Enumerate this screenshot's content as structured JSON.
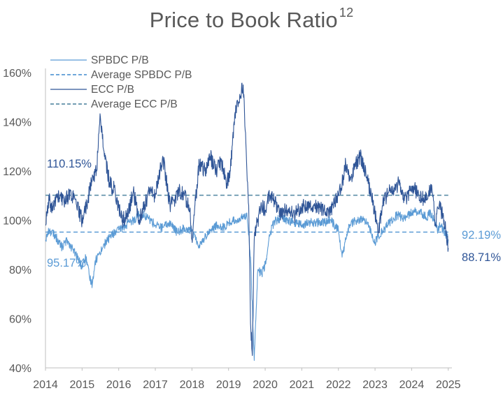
{
  "chart_data": {
    "type": "line",
    "title": "Price to Book Ratio",
    "title_superscript": "12",
    "xlabel": "",
    "ylabel": "",
    "xlim": [
      2014,
      2025.1
    ],
    "ylim": [
      40,
      160
    ],
    "x_ticks": [
      "2014",
      "2015",
      "2016",
      "2017",
      "2018",
      "2019",
      "2020",
      "2021",
      "2022",
      "2023",
      "2024",
      "2025"
    ],
    "y_ticks": [
      "40%",
      "60%",
      "80%",
      "100%",
      "120%",
      "140%",
      "160%"
    ],
    "grid": false,
    "legend_position": "top-left",
    "legend": [
      {
        "label": "SPBDC P/B",
        "style": "solid",
        "color": "#5B9BD5"
      },
      {
        "label": "Average SPBDC P/B",
        "style": "dashed",
        "color": "#5B9BD5"
      },
      {
        "label": "ECC P/B",
        "style": "solid",
        "color": "#2F5597"
      },
      {
        "label": "Average ECC P/B",
        "style": "dashed",
        "color": "#5E8FA8"
      }
    ],
    "series": [
      {
        "name": "SPBDC P/B",
        "color": "#5B9BD5",
        "x": [
          2014.0,
          2014.1,
          2014.25,
          2014.45,
          2014.6,
          2014.75,
          2014.9,
          2015.0,
          2015.1,
          2015.2,
          2015.28,
          2015.35,
          2015.45,
          2015.6,
          2015.8,
          2016.0,
          2016.2,
          2016.4,
          2016.6,
          2016.8,
          2017.0,
          2017.2,
          2017.4,
          2017.6,
          2017.8,
          2018.0,
          2018.1,
          2018.2,
          2018.35,
          2018.5,
          2018.7,
          2018.9,
          2019.0,
          2019.2,
          2019.4,
          2019.5,
          2019.6,
          2019.7,
          2019.8,
          2019.9,
          2020.0,
          2020.1,
          2020.2,
          2020.3,
          2020.45,
          2020.6,
          2020.8,
          2021.0,
          2021.2,
          2021.4,
          2021.6,
          2021.8,
          2022.0,
          2022.1,
          2022.2,
          2022.3,
          2022.5,
          2022.7,
          2022.85,
          2023.0,
          2023.2,
          2023.4,
          2023.6,
          2023.8,
          2024.0,
          2024.2,
          2024.4,
          2024.5,
          2024.6,
          2024.7,
          2024.8,
          2024.9,
          2025.0
        ],
        "values": [
          92,
          96,
          94,
          89,
          92,
          88,
          84,
          81,
          85,
          77,
          74,
          83,
          86,
          90,
          94,
          96,
          98,
          100,
          103,
          101,
          98,
          97,
          99,
          95,
          97,
          96,
          92,
          90,
          93,
          96,
          98,
          97,
          99,
          100,
          101,
          103,
          85,
          43,
          80,
          78,
          82,
          92,
          98,
          100,
          101,
          100,
          99,
          98,
          99,
          99,
          99,
          100,
          96,
          85,
          92,
          98,
          100,
          100,
          97,
          91,
          96,
          99,
          102,
          101,
          103,
          104,
          101,
          103,
          100,
          96,
          98,
          95,
          92.19
        ]
      },
      {
        "name": "Average SPBDC P/B",
        "color": "#5B9BD5",
        "x": [
          2014.0,
          2025.0
        ],
        "values": [
          95.17,
          95.17
        ]
      },
      {
        "name": "ECC P/B",
        "color": "#2F5597",
        "x": [
          2014.0,
          2014.1,
          2014.2,
          2014.3,
          2014.5,
          2014.7,
          2014.85,
          2015.0,
          2015.15,
          2015.3,
          2015.4,
          2015.45,
          2015.5,
          2015.6,
          2015.75,
          2015.9,
          2016.0,
          2016.1,
          2016.25,
          2016.4,
          2016.55,
          2016.7,
          2016.85,
          2017.0,
          2017.1,
          2017.2,
          2017.3,
          2017.4,
          2017.5,
          2017.65,
          2017.8,
          2017.95,
          2018.0,
          2018.1,
          2018.2,
          2018.35,
          2018.5,
          2018.65,
          2018.8,
          2018.95,
          2019.05,
          2019.15,
          2019.25,
          2019.35,
          2019.4,
          2019.5,
          2019.55,
          2019.6,
          2019.65,
          2019.7,
          2019.75,
          2019.8,
          2019.9,
          2020.0,
          2020.1,
          2020.25,
          2020.4,
          2020.6,
          2020.8,
          2021.0,
          2021.2,
          2021.4,
          2021.6,
          2021.8,
          2022.0,
          2022.1,
          2022.2,
          2022.3,
          2022.45,
          2022.6,
          2022.75,
          2022.9,
          2023.0,
          2023.1,
          2023.2,
          2023.35,
          2023.5,
          2023.65,
          2023.8,
          2023.95,
          2024.05,
          2024.2,
          2024.35,
          2024.45,
          2024.55,
          2024.65,
          2024.75,
          2024.85,
          2024.93,
          2025.0
        ],
        "values": [
          98,
          108,
          104,
          110,
          108,
          111,
          106,
          100,
          108,
          118,
          120,
          135,
          142,
          128,
          115,
          112,
          105,
          100,
          102,
          112,
          100,
          106,
          112,
          110,
          118,
          126,
          116,
          106,
          108,
          112,
          110,
          105,
          92,
          108,
          123,
          120,
          126,
          120,
          124,
          115,
          120,
          140,
          148,
          152,
          155,
          120,
          106,
          58,
          45,
          92,
          98,
          100,
          106,
          104,
          110,
          108,
          103,
          104,
          102,
          106,
          106,
          106,
          104,
          104,
          110,
          115,
          123,
          116,
          122,
          126,
          119,
          110,
          103,
          95,
          106,
          111,
          112,
          115,
          108,
          112,
          114,
          110,
          108,
          110,
          114,
          98,
          106,
          102,
          96,
          88.71
        ]
      },
      {
        "name": "Average ECC P/B",
        "color": "#5E8FA8",
        "x": [
          2014.0,
          2025.0
        ],
        "values": [
          110.15,
          110.15
        ]
      }
    ],
    "annotations": [
      {
        "text": "110.15%",
        "color": "#2F5597"
      },
      {
        "text": "95.17%",
        "color": "#5B9BD5"
      },
      {
        "text": "92.19%",
        "color": "#5B9BD5"
      },
      {
        "text": "88.71%",
        "color": "#2F5597"
      }
    ]
  }
}
